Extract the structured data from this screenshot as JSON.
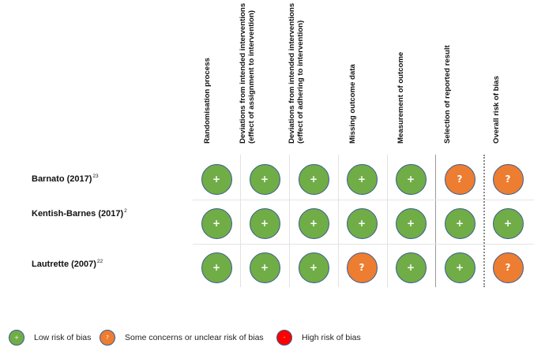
{
  "chart_data": {
    "type": "table",
    "title": "",
    "domains": [
      "Randomisation process",
      "Deviations from intended interventions\n(effect of assignment to intervention)",
      "Deviations from intended interventions\n(effect of adhering to intervention)",
      "Missing outcome data",
      "Measurement of outcome",
      "Selection of reported result",
      "Overall risk of bias"
    ],
    "studies": [
      {
        "name": "Barnato (2017)",
        "ref": "23",
        "ratings": [
          "low",
          "low",
          "low",
          "low",
          "low",
          "some",
          "some"
        ]
      },
      {
        "name": "Kentish-Barnes (2017)",
        "ref": "2",
        "ratings": [
          "low",
          "low",
          "low",
          "low",
          "low",
          "low",
          "low"
        ]
      },
      {
        "name": "Lautrette (2007)",
        "ref": "22",
        "ratings": [
          "low",
          "low",
          "low",
          "some",
          "low",
          "low",
          "some"
        ]
      }
    ],
    "legend": [
      {
        "key": "low",
        "symbol": "+",
        "label": "Low risk of bias",
        "color": "#70ad47"
      },
      {
        "key": "some",
        "symbol": "?",
        "label": "Some concerns or unclear risk of bias",
        "color": "#ed7d31"
      },
      {
        "key": "high",
        "symbol": "-",
        "label": "High risk of bias",
        "color": "#ff0000"
      }
    ]
  },
  "headers": {
    "h0": {
      "l1": "Randomisation process",
      "l2": ""
    },
    "h1": {
      "l1": "Deviations from intended interventions",
      "l2": "(effect of assignment to intervention)"
    },
    "h2": {
      "l1": "Deviations from intended interventions",
      "l2": "(effect of adhering to intervention)"
    },
    "h3": {
      "l1": "Missing outcome data",
      "l2": ""
    },
    "h4": {
      "l1": "Measurement of outcome",
      "l2": ""
    },
    "h5": {
      "l1": "Selection of reported result",
      "l2": ""
    },
    "h6": {
      "l1": "Overall risk of bias",
      "l2": ""
    }
  },
  "rows": {
    "r0": {
      "name": "Barnato (2017)",
      "ref": "23"
    },
    "r1": {
      "name": "Kentish-Barnes (2017)",
      "ref": "2"
    },
    "r2": {
      "name": "Lautrette (2007)",
      "ref": "22"
    }
  },
  "symbols": {
    "low": "+",
    "some": "?",
    "high": "-"
  },
  "colors": {
    "low": "#70ad47",
    "some": "#ed7d31",
    "high": "#ff0000",
    "outline": "#3a5c8e"
  },
  "legend": {
    "low_symbol": "+",
    "low_label": "Low risk of bias",
    "some_symbol": "?",
    "some_label": "Some concerns or unclear risk of bias",
    "high_symbol": "-",
    "high_label": "High risk of bias"
  }
}
